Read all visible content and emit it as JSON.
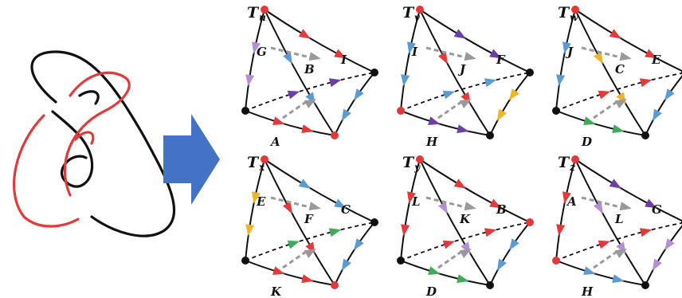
{
  "colors": {
    "red": "#e23a3a",
    "black": "#111111",
    "blue": "#5b9bd5",
    "yellow": "#f0b428",
    "purple": "#6b3fa8",
    "lilac": "#b48fd6",
    "green": "#3cab5a",
    "arrow": "#4472c4",
    "dashed": "#999999"
  },
  "arrow_icon": "right-arrow-icon",
  "panels": [
    {
      "title_main": "T",
      "title_sub": "u",
      "faces": [
        "G",
        "B",
        "I",
        "A"
      ],
      "vertex_colors": [
        "red",
        "black",
        "red",
        "black"
      ],
      "edge_colors": [
        "lilac",
        "blue",
        "red",
        "purple",
        "blue",
        "red"
      ]
    },
    {
      "title_main": "T",
      "title_sub": "v",
      "faces": [
        "I",
        "J",
        "F",
        "H"
      ],
      "vertex_colors": [
        "red",
        "black",
        "black",
        "red"
      ],
      "edge_colors": [
        "blue",
        "red",
        "purple",
        "blue",
        "yellow",
        "purple"
      ]
    },
    {
      "title_main": "T",
      "title_sub": "w",
      "faces": [
        "J",
        "C",
        "E",
        "D"
      ],
      "vertex_colors": [
        "red",
        "black",
        "black",
        "black"
      ],
      "edge_colors": [
        "blue",
        "yellow",
        "red",
        "red",
        "blue",
        "green"
      ]
    },
    {
      "title_main": "T",
      "title_sub": "x",
      "faces": [
        "E",
        "F",
        "C",
        "K"
      ],
      "vertex_colors": [
        "red",
        "black",
        "red",
        "black"
      ],
      "edge_colors": [
        "yellow",
        "red",
        "blue",
        "green",
        "blue",
        "red"
      ]
    },
    {
      "title_main": "T",
      "title_sub": "y",
      "faces": [
        "L",
        "K",
        "B",
        "D"
      ],
      "vertex_colors": [
        "red",
        "red",
        "black",
        "black"
      ],
      "edge_colors": [
        "red",
        "lilac",
        "red",
        "red",
        "blue",
        "green"
      ]
    },
    {
      "title_main": "T",
      "title_sub": "z",
      "faces": [
        "A",
        "L",
        "G",
        "H"
      ],
      "vertex_colors": [
        "red",
        "black",
        "black",
        "red"
      ],
      "edge_colors": [
        "red",
        "lilac",
        "purple",
        "red",
        "lilac",
        "blue"
      ]
    }
  ]
}
